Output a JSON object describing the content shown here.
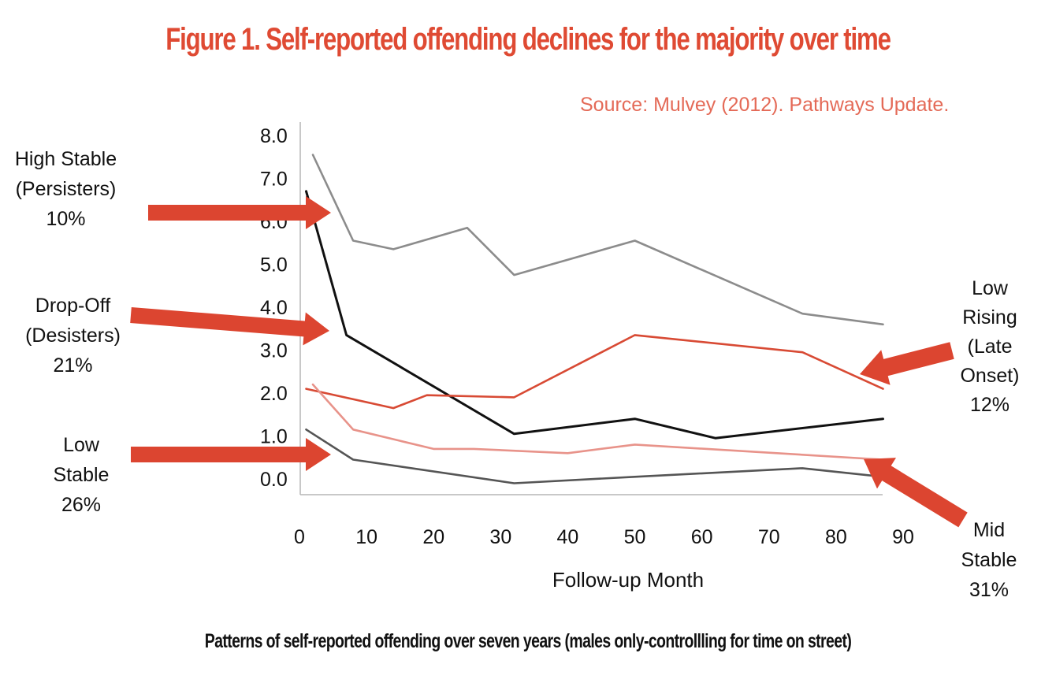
{
  "title": "Figure 1. Self-reported offending declines for the majority over time",
  "source": "Source: Mulvey (2012). Pathways Update.",
  "caption": "Patterns of self-reported offending over seven years (males only-controllling for time on street)",
  "colors": {
    "title": "#df4a33",
    "source": "#e46a57",
    "arrow": "#dc4530"
  },
  "group_labels": {
    "high_stable": [
      "High Stable",
      "(Persisters)",
      "10%"
    ],
    "drop_off": [
      "Drop-Off",
      "(Desisters)",
      "21%"
    ],
    "low_stable": [
      "Low",
      "Stable",
      "26%"
    ],
    "low_rising": [
      "Low",
      "Rising",
      "(Late",
      "Onset)",
      "12%"
    ],
    "mid_stable": [
      "Mid",
      "Stable",
      "31%"
    ]
  },
  "chart_data": {
    "type": "line",
    "title": "Figure 1. Self-reported offending declines for the majority over time",
    "xlabel": "Follow-up Month",
    "ylabel": "",
    "xlim": [
      0,
      90
    ],
    "ylim": [
      0,
      8
    ],
    "x_ticks": [
      "0",
      "10",
      "20",
      "30",
      "40",
      "50",
      "60",
      "70",
      "80",
      "90"
    ],
    "y_ticks": [
      "0.0",
      "1.0",
      "2.0",
      "3.0",
      "4.0",
      "5.0",
      "6.0",
      "7.0",
      "8.0"
    ],
    "grid": false,
    "series": [
      {
        "name": "High Stable (Persisters) 10%",
        "color": "#8c8c8c",
        "x": [
          2,
          8,
          14,
          25,
          32,
          50,
          75,
          87
        ],
        "y": [
          7.55,
          5.55,
          5.35,
          5.85,
          4.75,
          5.55,
          3.85,
          3.6
        ]
      },
      {
        "name": "Drop-Off (Desisters) 21%",
        "color": "#111111",
        "x": [
          1,
          7,
          32,
          50,
          62,
          87
        ],
        "y": [
          6.7,
          3.35,
          1.05,
          1.4,
          0.95,
          1.4
        ]
      },
      {
        "name": "Low Rising (Late Onset) 12%",
        "color": "#d84a34",
        "x": [
          1,
          14,
          19,
          32,
          50,
          75,
          87
        ],
        "y": [
          2.1,
          1.65,
          1.95,
          1.9,
          3.35,
          2.95,
          2.1
        ]
      },
      {
        "name": "Mid Stable 31%",
        "color": "#e8938a",
        "x": [
          2,
          8,
          20,
          26,
          40,
          50,
          87
        ],
        "y": [
          2.2,
          1.15,
          0.7,
          0.7,
          0.6,
          0.8,
          0.45
        ]
      },
      {
        "name": "Low Stable 26%",
        "color": "#555555",
        "x": [
          1,
          8,
          32,
          50,
          75,
          87
        ],
        "y": [
          1.15,
          0.45,
          -0.1,
          0.05,
          0.25,
          0.05
        ]
      }
    ]
  }
}
